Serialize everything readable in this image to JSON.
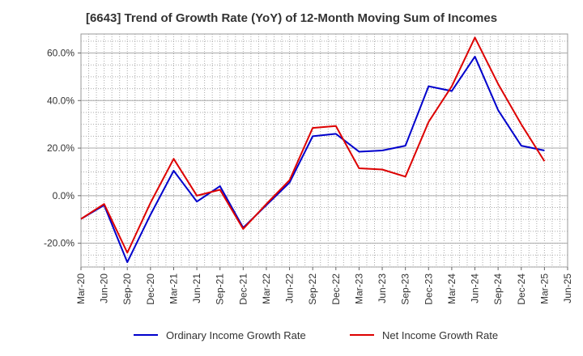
{
  "chart_data": {
    "type": "line",
    "title": "[6643]  Trend of Growth Rate (YoY) of 12-Month Moving Sum of Incomes",
    "xlabel": "",
    "ylabel": "",
    "categories": [
      "Mar-20",
      "Jun-20",
      "Sep-20",
      "Dec-20",
      "Mar-21",
      "Jun-21",
      "Sep-21",
      "Dec-21",
      "Mar-22",
      "Jun-22",
      "Sep-22",
      "Dec-22",
      "Mar-23",
      "Jun-23",
      "Sep-23",
      "Dec-23",
      "Mar-24",
      "Jun-24",
      "Sep-24",
      "Dec-24",
      "Mar-25",
      "Jun-25"
    ],
    "y_ticks": [
      "-20.0%",
      "0.0%",
      "20.0%",
      "40.0%",
      "60.0%"
    ],
    "ylim": [
      -30,
      68
    ],
    "grid": true,
    "legend_position": "bottom",
    "series": [
      {
        "name": "Ordinary Income Growth Rate",
        "color": "#0000cc",
        "values": [
          -9.8,
          -4,
          -28,
          -8,
          10.5,
          -2.5,
          4,
          -13.5,
          -4,
          5.5,
          25,
          26,
          18.5,
          19,
          21,
          46,
          44,
          58.5,
          36,
          21,
          19,
          null
        ]
      },
      {
        "name": "Net Income Growth Rate",
        "color": "#dd0000",
        "values": [
          -9.8,
          -3.5,
          -24,
          -3,
          15.5,
          0,
          2.5,
          -14,
          -3.5,
          6.5,
          28.5,
          29.3,
          11.5,
          11,
          8,
          31,
          46,
          66.5,
          47,
          30,
          14.5,
          null
        ]
      }
    ]
  }
}
